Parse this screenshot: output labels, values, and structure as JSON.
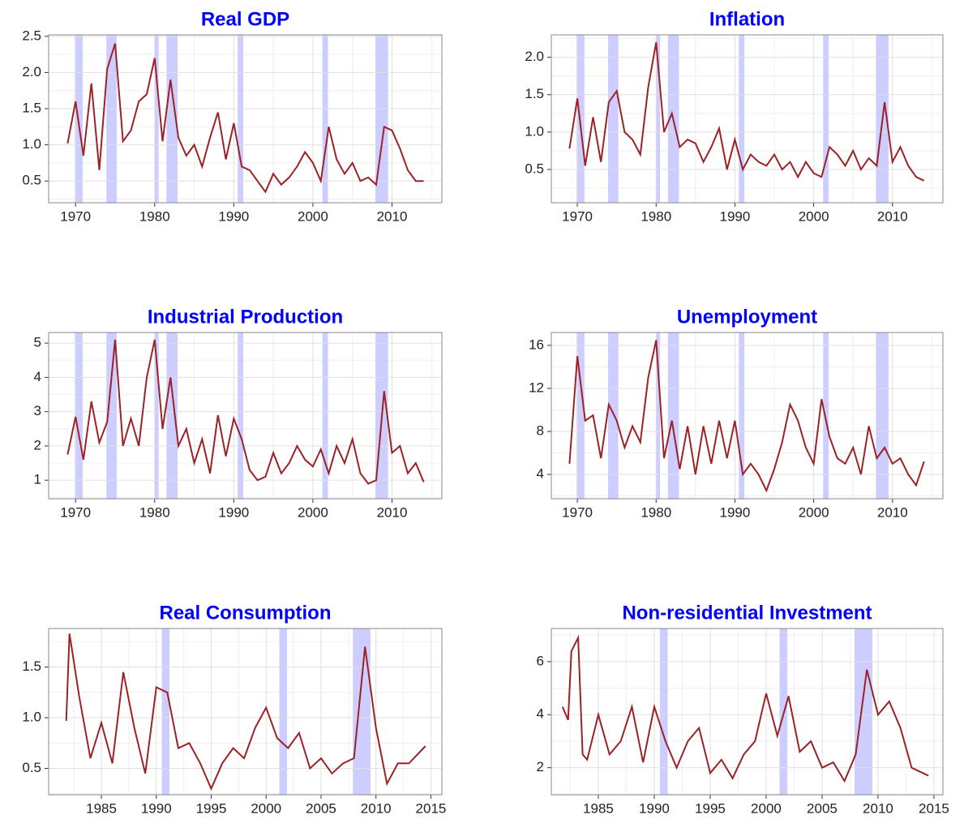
{
  "chart_data": [
    {
      "type": "line",
      "title": "Real GDP",
      "color": "#9b2226",
      "shade_color": "#c8c8ff",
      "grid": true,
      "shaded": [
        [
          1969.9,
          1970.9
        ],
        [
          1973.9,
          1975.2
        ],
        [
          1980.0,
          1980.5
        ],
        [
          1981.5,
          1982.9
        ],
        [
          1990.5,
          1991.2
        ],
        [
          2001.2,
          2001.9
        ],
        [
          2007.9,
          2009.5
        ]
      ],
      "x": [
        1969,
        1970,
        1971,
        1972,
        1973,
        1974,
        1975,
        1976,
        1977,
        1978,
        1979,
        1980,
        1981,
        1982,
        1983,
        1984,
        1985,
        1986,
        1987,
        1988,
        1989,
        1990,
        1991,
        1992,
        1993,
        1994,
        1995,
        1996,
        1997,
        1998,
        1999,
        2000,
        2001,
        2002,
        2003,
        2004,
        2005,
        2006,
        2007,
        2008,
        2009,
        2010,
        2011,
        2012,
        2013,
        2014
      ],
      "values": [
        1.02,
        1.6,
        0.85,
        1.85,
        0.65,
        2.05,
        2.4,
        1.05,
        1.2,
        1.6,
        1.7,
        2.2,
        1.05,
        1.9,
        1.1,
        0.85,
        1.0,
        0.7,
        1.1,
        1.45,
        0.8,
        1.3,
        0.7,
        0.65,
        0.5,
        0.35,
        0.6,
        0.45,
        0.55,
        0.7,
        0.9,
        0.75,
        0.5,
        1.25,
        0.8,
        0.6,
        0.75,
        0.5,
        0.55,
        0.45,
        1.25,
        1.2,
        0.95,
        0.65,
        0.5,
        0.5
      ],
      "xlim": [
        1966.6,
        2016.3
      ],
      "xticks": [
        1970,
        1980,
        1990,
        2000,
        2010
      ],
      "ylim": [
        0.2,
        2.52
      ],
      "yticks": [
        0.5,
        {
          "value": 1,
          "label": "1.0"
        },
        1.5,
        {
          "value": 2,
          "label": "2.0"
        },
        2.5
      ]
    },
    {
      "type": "line",
      "title": "Inflation",
      "color": "#9b2226",
      "shade_color": "#c8c8ff",
      "grid": true,
      "shaded": [
        [
          1969.9,
          1970.9
        ],
        [
          1973.9,
          1975.2
        ],
        [
          1980.0,
          1980.5
        ],
        [
          1981.5,
          1982.9
        ],
        [
          1990.5,
          1991.2
        ],
        [
          2001.2,
          2001.9
        ],
        [
          2007.9,
          2009.5
        ]
      ],
      "x": [
        1969,
        1970,
        1971,
        1972,
        1973,
        1974,
        1975,
        1976,
        1977,
        1978,
        1979,
        1980,
        1981,
        1982,
        1983,
        1984,
        1985,
        1986,
        1987,
        1988,
        1989,
        1990,
        1991,
        1992,
        1993,
        1994,
        1995,
        1996,
        1997,
        1998,
        1999,
        2000,
        2001,
        2002,
        2003,
        2004,
        2005,
        2006,
        2007,
        2008,
        2009,
        2010,
        2011,
        2012,
        2013,
        2014
      ],
      "values": [
        0.78,
        1.45,
        0.55,
        1.2,
        0.6,
        1.4,
        1.55,
        1.0,
        0.9,
        0.7,
        1.6,
        2.2,
        1.0,
        1.25,
        0.8,
        0.9,
        0.85,
        0.6,
        0.8,
        1.05,
        0.5,
        0.9,
        0.5,
        0.7,
        0.6,
        0.55,
        0.7,
        0.5,
        0.6,
        0.4,
        0.6,
        0.45,
        0.4,
        0.8,
        0.7,
        0.55,
        0.75,
        0.5,
        0.65,
        0.55,
        1.4,
        0.6,
        0.8,
        0.55,
        0.4,
        0.35
      ],
      "xlim": [
        1966.7,
        2016.4
      ],
      "xticks": [
        1970,
        1980,
        1990,
        2000,
        2010
      ],
      "ylim": [
        0.055,
        2.3
      ],
      "yticks": [
        0.5,
        {
          "value": 1,
          "label": "1.0"
        },
        1.5,
        {
          "value": 2,
          "label": "2.0"
        }
      ]
    },
    {
      "type": "line",
      "title": "Industrial Production",
      "color": "#9b2226",
      "shade_color": "#c8c8ff",
      "grid": true,
      "shaded": [
        [
          1969.9,
          1970.9
        ],
        [
          1973.9,
          1975.2
        ],
        [
          1980.0,
          1980.5
        ],
        [
          1981.5,
          1982.9
        ],
        [
          1990.5,
          1991.2
        ],
        [
          2001.2,
          2001.9
        ],
        [
          2007.9,
          2009.5
        ]
      ],
      "x": [
        1969,
        1970,
        1971,
        1972,
        1973,
        1974,
        1975,
        1976,
        1977,
        1978,
        1979,
        1980,
        1981,
        1982,
        1983,
        1984,
        1985,
        1986,
        1987,
        1988,
        1989,
        1990,
        1991,
        1992,
        1993,
        1994,
        1995,
        1996,
        1997,
        1998,
        1999,
        2000,
        2001,
        2002,
        2003,
        2004,
        2005,
        2006,
        2007,
        2008,
        2009,
        2010,
        2011,
        2012,
        2013,
        2014
      ],
      "values": [
        1.75,
        2.85,
        1.6,
        3.3,
        2.1,
        2.7,
        5.1,
        2.0,
        2.8,
        2.0,
        4.0,
        5.1,
        2.5,
        4.0,
        2.0,
        2.5,
        1.5,
        2.2,
        1.2,
        2.9,
        1.7,
        2.8,
        2.2,
        1.3,
        1.0,
        1.1,
        1.8,
        1.2,
        1.5,
        2.0,
        1.6,
        1.4,
        1.9,
        1.2,
        2.0,
        1.5,
        2.2,
        1.2,
        0.9,
        1.0,
        3.6,
        1.8,
        2.0,
        1.2,
        1.5,
        0.95
      ],
      "xlim": [
        1966.6,
        2016.3
      ],
      "xticks": [
        1970,
        1980,
        1990,
        2000,
        2010
      ],
      "ylim": [
        0.46,
        5.31
      ],
      "yticks": [
        1,
        2,
        3,
        4,
        5
      ]
    },
    {
      "type": "line",
      "title": "Unemployment",
      "color": "#9b2226",
      "shade_color": "#c8c8ff",
      "grid": true,
      "shaded": [
        [
          1969.9,
          1970.9
        ],
        [
          1973.9,
          1975.2
        ],
        [
          1980.0,
          1980.5
        ],
        [
          1981.5,
          1982.9
        ],
        [
          1990.5,
          1991.2
        ],
        [
          2001.2,
          2001.9
        ],
        [
          2007.9,
          2009.5
        ]
      ],
      "x": [
        1969,
        1970,
        1971,
        1972,
        1973,
        1974,
        1975,
        1976,
        1977,
        1978,
        1979,
        1980,
        1981,
        1982,
        1983,
        1984,
        1985,
        1986,
        1987,
        1988,
        1989,
        1990,
        1991,
        1992,
        1993,
        1994,
        1995,
        1996,
        1997,
        1998,
        1999,
        2000,
        2001,
        2002,
        2003,
        2004,
        2005,
        2006,
        2007,
        2008,
        2009,
        2010,
        2011,
        2012,
        2013,
        2014
      ],
      "values": [
        5,
        15,
        9,
        9.5,
        5.5,
        10.5,
        9,
        6.5,
        8.5,
        7,
        13,
        16.5,
        5.5,
        9,
        4.5,
        8.5,
        4,
        8.5,
        5,
        9,
        5.5,
        9,
        4,
        5,
        4,
        2.5,
        4.5,
        7,
        10.5,
        9,
        6.5,
        5,
        11,
        7.5,
        5.5,
        5,
        6.5,
        4,
        8.5,
        5.5,
        6.5,
        5,
        5.5,
        4,
        3,
        5.2
      ],
      "xlim": [
        1966.7,
        2016.4
      ],
      "xticks": [
        1970,
        1980,
        1990,
        2000,
        2010
      ],
      "ylim": [
        1.74,
        17.2
      ],
      "yticks": [
        4,
        8,
        12,
        16
      ]
    },
    {
      "type": "line",
      "title": "Real Consumption",
      "color": "#9b2226",
      "shade_color": "#c8c8ff",
      "grid": true,
      "shaded": [
        [
          1990.5,
          1991.2
        ],
        [
          2001.2,
          2001.9
        ],
        [
          2007.9,
          2009.5
        ]
      ],
      "x": [
        1981.8,
        1982.1,
        1983,
        1984,
        1985,
        1986,
        1987,
        1988,
        1989,
        1990,
        1991,
        1992,
        1993,
        1994,
        1995,
        1996,
        1997,
        1998,
        1999,
        2000,
        2001,
        2002,
        2003,
        2004,
        2005,
        2006,
        2007,
        2008,
        2009,
        2010,
        2011,
        2012,
        2013,
        2014.5
      ],
      "values": [
        0.97,
        1.83,
        1.2,
        0.6,
        0.95,
        0.55,
        1.45,
        0.9,
        0.45,
        1.3,
        1.25,
        0.7,
        0.75,
        0.55,
        0.3,
        0.55,
        0.7,
        0.6,
        0.9,
        1.1,
        0.8,
        0.7,
        0.85,
        0.5,
        0.6,
        0.45,
        0.55,
        0.6,
        1.7,
        0.9,
        0.35,
        0.55,
        0.55,
        0.72
      ],
      "xlim": [
        1980.2,
        2016.0
      ],
      "xticks": [
        1985,
        1990,
        1995,
        2000,
        2005,
        2010,
        2015
      ],
      "ylim": [
        0.24,
        1.88
      ],
      "yticks": [
        0.5,
        {
          "value": 1,
          "label": "1.0"
        },
        1.5
      ]
    },
    {
      "type": "line",
      "title": "Non-residential Investment",
      "color": "#9b2226",
      "shade_color": "#c8c8ff",
      "grid": true,
      "shaded": [
        [
          1990.5,
          1991.2
        ],
        [
          2001.2,
          2001.9
        ],
        [
          2007.9,
          2009.5
        ]
      ],
      "x": [
        1981.8,
        1982.3,
        1982.6,
        1983.2,
        1983.6,
        1984,
        1985,
        1986,
        1987,
        1988,
        1989,
        1990,
        1991,
        1992,
        1993,
        1994,
        1995,
        1996,
        1997,
        1998,
        1999,
        2000,
        2001,
        2002,
        2003,
        2004,
        2005,
        2006,
        2007,
        2008,
        2009,
        2010,
        2011,
        2012,
        2013,
        2014,
        2014.5
      ],
      "values": [
        4.3,
        3.8,
        6.4,
        6.9,
        2.5,
        2.3,
        4.0,
        2.5,
        3.0,
        4.3,
        2.2,
        4.3,
        3.0,
        2.0,
        3.0,
        3.5,
        1.8,
        2.3,
        1.6,
        2.5,
        3.0,
        4.8,
        3.2,
        4.7,
        2.6,
        3.0,
        2.0,
        2.2,
        1.5,
        2.5,
        5.7,
        4.0,
        4.5,
        3.5,
        2.0,
        1.8,
        1.7
      ],
      "xlim": [
        1980.8,
        2015.8
      ],
      "xticks": [
        1985,
        1990,
        1995,
        2000,
        2005,
        2010,
        2015
      ],
      "ylim": [
        0.98,
        7.25
      ],
      "yticks": [
        2,
        4,
        6
      ]
    }
  ]
}
